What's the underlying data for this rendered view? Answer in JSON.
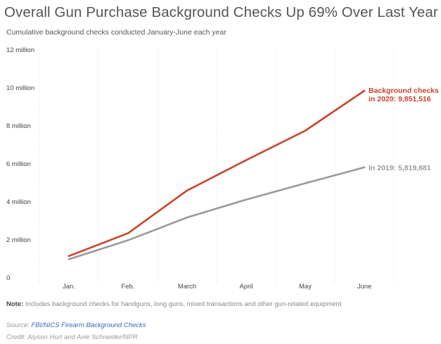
{
  "header": {
    "title": "Overall Gun Purchase Background Checks Up 69% Over Last Year",
    "subtitle": "Cumulative background checks conducted January-June each year"
  },
  "footer": {
    "note_label": "Note:",
    "note_text": " Includes background checks for handguns, long guns, mixed transactions and other gun-related equipment",
    "source_label": "Source: ",
    "source_link": "FBI/NICS Firearm Background Checks",
    "credit": "Credit: Alyson Hurt and Avie Schneider/NPR"
  },
  "colors": {
    "series_2020": "#c9432b",
    "series_2019": "#999999",
    "grid": "#dddddd"
  },
  "chart_data": {
    "type": "line",
    "title": "Overall Gun Purchase Background Checks Up 69% Over Last Year",
    "subtitle": "Cumulative background checks conducted January-June each year",
    "categories": [
      "Jan.",
      "Feb.",
      "March",
      "April",
      "May",
      "June"
    ],
    "y_tick_values": [
      0,
      2000000,
      4000000,
      6000000,
      8000000,
      10000000,
      12000000
    ],
    "y_tick_labels": [
      "0",
      "2 million",
      "4 million",
      "6 million",
      "8 million",
      "10 million",
      "12 million"
    ],
    "ylim": [
      0,
      12000000
    ],
    "grid": "vertical",
    "series": [
      {
        "name": "2020",
        "values": [
          1150000,
          2350000,
          4600000,
          6200000,
          7750000,
          9851516
        ],
        "annotation_lines": [
          "Background checks",
          "in 2020: 9,851,516"
        ]
      },
      {
        "name": "2019",
        "values": [
          980000,
          1980000,
          3180000,
          4120000,
          4980000,
          5819681
        ],
        "annotation_lines": [
          "In 2019: 5,819,681"
        ]
      }
    ]
  }
}
